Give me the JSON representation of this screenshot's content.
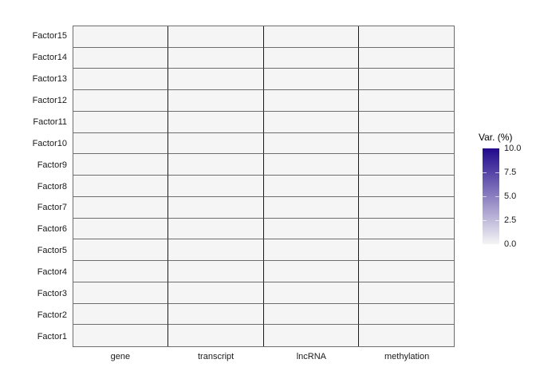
{
  "figure": {
    "background": "#FFFFFF"
  },
  "chart_data": {
    "type": "heatmap",
    "title": "",
    "xlabel": "",
    "ylabel": "",
    "x_categories": [
      "gene",
      "transcript",
      "lncRNA",
      "methylation"
    ],
    "y_categories_top_to_bottom": [
      "Factor15",
      "Factor14",
      "Factor13",
      "Factor12",
      "Factor11",
      "Factor10",
      "Factor9",
      "Factor8",
      "Factor7",
      "Factor6",
      "Factor5",
      "Factor4",
      "Factor3",
      "Factor2",
      "Factor1"
    ],
    "values_rows_top_to_bottom": [
      [
        0,
        0,
        0,
        0
      ],
      [
        0,
        0,
        0,
        0
      ],
      [
        0,
        0,
        0,
        0
      ],
      [
        0,
        0,
        0,
        0
      ],
      [
        0,
        0,
        0,
        0
      ],
      [
        0,
        0,
        0,
        0
      ],
      [
        0,
        0,
        0,
        0
      ],
      [
        0,
        0,
        0,
        0
      ],
      [
        0,
        0,
        0,
        0
      ],
      [
        0,
        0,
        0,
        0
      ],
      [
        0,
        0,
        0,
        0
      ],
      [
        0,
        0,
        0,
        0
      ],
      [
        0,
        0,
        0,
        0
      ],
      [
        0,
        0,
        0,
        0
      ],
      [
        0,
        0,
        0,
        0
      ]
    ],
    "value_min": 0.0,
    "value_max": 10.0,
    "grid": "on",
    "legend": {
      "title": "Var. (%)",
      "position": "right",
      "tick_labels": [
        "10.0",
        "7.5",
        "5.0",
        "2.5",
        "0.0"
      ]
    },
    "colors": {
      "scale_low": "#F5F5F5",
      "scale_high": "#21098C",
      "grid_vertical_line": "#1A1A1A",
      "grid_horizontal_line": "#6E6E6E",
      "panel_border": "#6E6E6E",
      "axis_text": "#1A1A1A",
      "background": "#FFFFFF"
    }
  }
}
